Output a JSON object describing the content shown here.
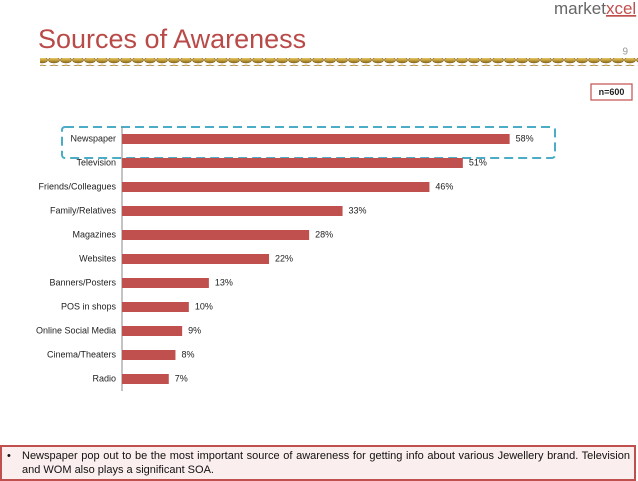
{
  "logo": {
    "left": "market",
    "right": "xcel"
  },
  "page_number": "9",
  "sample": "n=600",
  "chart_data": {
    "type": "hbar",
    "title": "Sources of Awareness",
    "categories": [
      "Newspaper",
      "Television",
      "Friends/Colleagues",
      "Family/Relatives",
      "Magazines",
      "Websites",
      "Banners/Posters",
      "POS in shops",
      "Online Social Media",
      "Cinema/Theaters",
      "Radio"
    ],
    "values": [
      58,
      51,
      46,
      33,
      28,
      22,
      13,
      10,
      9,
      8,
      7
    ],
    "value_labels": [
      "58%",
      "51%",
      "46%",
      "33%",
      "28%",
      "22%",
      "13%",
      "10%",
      "9%",
      "8%",
      "7%"
    ],
    "color": "#c0504d",
    "xlim": [
      0,
      60
    ]
  },
  "note": "Newspaper pop out to be the most important source of awareness for getting info about various Jewellery brand. Television and WOM also plays a significant SOA."
}
